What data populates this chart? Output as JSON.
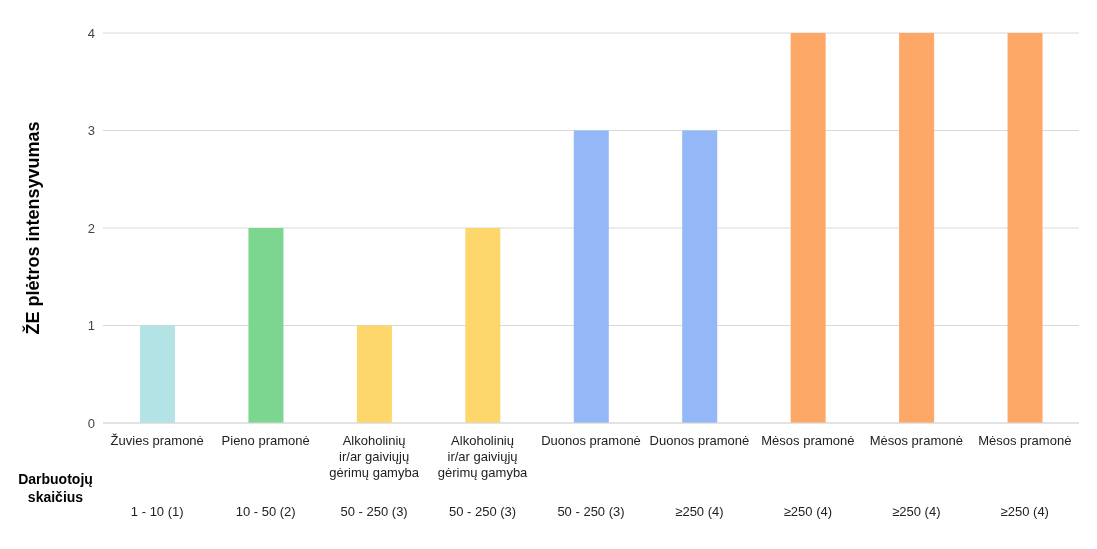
{
  "chart_data": {
    "type": "bar",
    "categories": [
      "Žuvies pramonė\n1    - 10 (1)",
      "Pieno pramonė\n10 - 50 (2)",
      "Alkoholinių ir/ar gaiviųjų gėrimų gamyba\n50 - 250 (3)",
      "Alkoholinių ir/ar gaiviųjų gėrimų gamyba\n50 - 250 (3)",
      "Duonos pramonė\n50 - 250 (3)",
      "Duonos pramonė\n≥250 (4)",
      "Mėsos pramonė\n≥250 (4)",
      "Mėsos pramonė\n≥250 (4)",
      "Mėsos pramonė\n≥250 (4)"
    ],
    "values": [
      1,
      2,
      1,
      2,
      3,
      3,
      4,
      4,
      4
    ],
    "colors": [
      "#b4e3e6",
      "#7dd68f",
      "#fdd66c",
      "#fdd66c",
      "#93b7f7",
      "#93b7f7",
      "#fda866",
      "#fda866",
      "#fda866"
    ],
    "ylabel": "ŽE plėtros intensyvumas",
    "xlabel": "Darbuotojų skaičius",
    "ylim": [
      0,
      4
    ],
    "yticks": [
      0,
      1,
      2,
      3,
      4
    ],
    "grid": "y"
  }
}
